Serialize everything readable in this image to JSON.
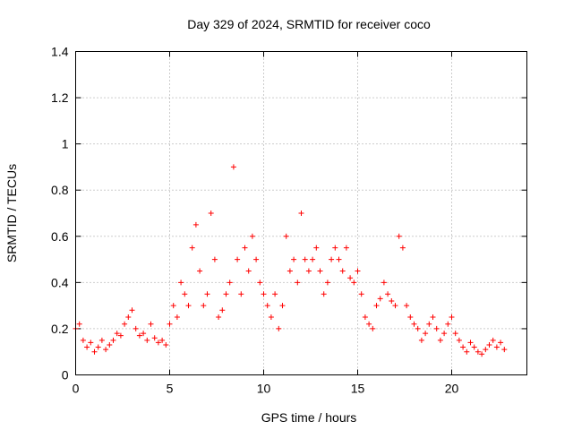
{
  "chart_data": {
    "type": "scatter",
    "title": "Day 329 of 2024, SRMTID for receiver coco",
    "xlabel": "GPS time / hours",
    "ylabel": "SRMTID / TECUs",
    "xlim": [
      0,
      24
    ],
    "ylim": [
      0,
      1.4
    ],
    "xticks": [
      "0",
      "5",
      "10",
      "15",
      "20"
    ],
    "yticks": [
      "0",
      "0.2",
      "0.4",
      "0.6",
      "0.8",
      "1",
      "1.2",
      "1.4"
    ],
    "grid": true,
    "marker": "+",
    "color": "#ff0000",
    "series": [
      {
        "name": "SRMTID",
        "points_note": "estimated from figure",
        "x": [
          0.0,
          0.2,
          0.4,
          0.6,
          0.8,
          1.0,
          1.2,
          1.4,
          1.6,
          1.8,
          2.0,
          2.2,
          2.4,
          2.6,
          2.8,
          3.0,
          3.2,
          3.4,
          3.6,
          3.8,
          4.0,
          4.2,
          4.4,
          4.6,
          4.8,
          5.0,
          5.2,
          5.4,
          5.6,
          5.8,
          6.0,
          6.2,
          6.4,
          6.6,
          6.8,
          7.0,
          7.2,
          7.4,
          7.6,
          7.8,
          8.0,
          8.2,
          8.4,
          8.6,
          8.8,
          9.0,
          9.2,
          9.4,
          9.6,
          9.8,
          10.0,
          10.2,
          10.4,
          10.6,
          10.8,
          11.0,
          11.2,
          11.4,
          11.6,
          11.8,
          12.0,
          12.2,
          12.4,
          12.6,
          12.8,
          13.0,
          13.2,
          13.4,
          13.6,
          13.8,
          14.0,
          14.2,
          14.4,
          14.6,
          14.8,
          15.0,
          15.2,
          15.4,
          15.6,
          15.8,
          16.0,
          16.2,
          16.4,
          16.6,
          16.8,
          17.0,
          17.2,
          17.4,
          17.6,
          17.8,
          18.0,
          18.2,
          18.4,
          18.6,
          18.8,
          19.0,
          19.2,
          19.4,
          19.6,
          19.8,
          20.0,
          20.2,
          20.4,
          20.6,
          20.8,
          21.0,
          21.2,
          21.4,
          21.6,
          21.8,
          22.0,
          22.2,
          22.4,
          22.6,
          22.8
        ],
        "y": [
          0.2,
          0.22,
          0.15,
          0.12,
          0.14,
          0.1,
          0.12,
          0.15,
          0.11,
          0.13,
          0.15,
          0.18,
          0.17,
          0.22,
          0.25,
          0.28,
          0.2,
          0.17,
          0.18,
          0.15,
          0.22,
          0.16,
          0.14,
          0.15,
          0.13,
          0.22,
          0.3,
          0.25,
          0.4,
          0.35,
          0.3,
          0.55,
          0.65,
          0.45,
          0.3,
          0.35,
          0.7,
          0.5,
          0.25,
          0.28,
          0.35,
          0.4,
          0.9,
          0.5,
          0.35,
          0.55,
          0.45,
          0.6,
          0.5,
          0.4,
          0.35,
          0.3,
          0.25,
          0.35,
          0.2,
          0.3,
          0.6,
          0.45,
          0.5,
          0.4,
          0.7,
          0.5,
          0.45,
          0.5,
          0.55,
          0.45,
          0.35,
          0.4,
          0.5,
          0.55,
          0.5,
          0.45,
          0.55,
          0.42,
          0.4,
          0.45,
          0.35,
          0.25,
          0.22,
          0.2,
          0.3,
          0.33,
          0.4,
          0.35,
          0.32,
          0.3,
          0.6,
          0.55,
          0.3,
          0.25,
          0.22,
          0.2,
          0.15,
          0.18,
          0.22,
          0.25,
          0.2,
          0.15,
          0.18,
          0.22,
          0.25,
          0.18,
          0.15,
          0.12,
          0.1,
          0.14,
          0.12,
          0.1,
          0.09,
          0.11,
          0.13,
          0.15,
          0.12,
          0.14,
          0.11
        ]
      }
    ]
  }
}
